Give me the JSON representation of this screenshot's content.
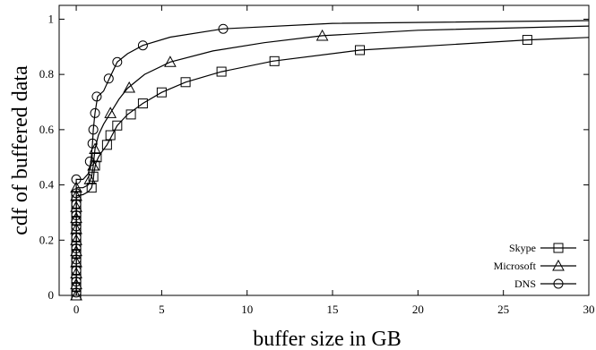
{
  "chart_data": {
    "type": "line",
    "xlabel": "buffer size in GB",
    "ylabel": "cdf of buffered data",
    "xlim": [
      -1,
      30
    ],
    "ylim": [
      0,
      1.05
    ],
    "x_ticks": [
      0,
      5,
      10,
      15,
      20,
      25,
      30
    ],
    "y_ticks": [
      0,
      0.2,
      0.4,
      0.6,
      0.8,
      1
    ],
    "x_tick_labels": [
      "0",
      "5",
      "10",
      "15",
      "20",
      "25",
      "30"
    ],
    "y_tick_labels": [
      "0",
      "0.2",
      "0.4",
      "0.6",
      "0.8",
      "1"
    ],
    "grid": false,
    "legend_position": "bottom-right",
    "series": [
      {
        "name": "Skype",
        "marker": "square",
        "curve": [
          [
            0,
            0
          ],
          [
            0,
            0.36
          ],
          [
            0.4,
            0.365
          ],
          [
            0.7,
            0.375
          ],
          [
            0.9,
            0.39
          ],
          [
            1.0,
            0.42
          ],
          [
            1.05,
            0.45
          ],
          [
            1.15,
            0.48
          ],
          [
            1.3,
            0.5
          ],
          [
            1.5,
            0.52
          ],
          [
            1.8,
            0.545
          ],
          [
            2.1,
            0.58
          ],
          [
            2.4,
            0.615
          ],
          [
            3.0,
            0.655
          ],
          [
            3.9,
            0.695
          ],
          [
            5.0,
            0.735
          ],
          [
            6.4,
            0.772
          ],
          [
            8.5,
            0.81
          ],
          [
            11.5,
            0.848
          ],
          [
            16.6,
            0.888
          ],
          [
            26.4,
            0.925
          ],
          [
            30,
            0.934
          ]
        ],
        "markers": [
          [
            0,
            0
          ],
          [
            0,
            0.03
          ],
          [
            0,
            0.06
          ],
          [
            0,
            0.09
          ],
          [
            0,
            0.12
          ],
          [
            0,
            0.15
          ],
          [
            0,
            0.18
          ],
          [
            0,
            0.21
          ],
          [
            0,
            0.24
          ],
          [
            0,
            0.27
          ],
          [
            0,
            0.3
          ],
          [
            0,
            0.33
          ],
          [
            0,
            0.36
          ],
          [
            0.9,
            0.39
          ],
          [
            1.0,
            0.43
          ],
          [
            1.1,
            0.47
          ],
          [
            1.2,
            0.5
          ],
          [
            1.8,
            0.545
          ],
          [
            2.0,
            0.58
          ],
          [
            2.4,
            0.615
          ],
          [
            3.2,
            0.655
          ],
          [
            3.9,
            0.695
          ],
          [
            5.0,
            0.735
          ],
          [
            6.4,
            0.772
          ],
          [
            8.5,
            0.81
          ],
          [
            11.6,
            0.848
          ],
          [
            16.6,
            0.888
          ],
          [
            26.4,
            0.925
          ]
        ]
      },
      {
        "name": "Microsoft",
        "marker": "triangle",
        "curve": [
          [
            0,
            0
          ],
          [
            0,
            0.39
          ],
          [
            0.4,
            0.39
          ],
          [
            0.7,
            0.4
          ],
          [
            0.9,
            0.43
          ],
          [
            1.0,
            0.47
          ],
          [
            1.1,
            0.53
          ],
          [
            1.3,
            0.58
          ],
          [
            1.6,
            0.62
          ],
          [
            2.0,
            0.66
          ],
          [
            2.5,
            0.71
          ],
          [
            3.0,
            0.75
          ],
          [
            4.0,
            0.8
          ],
          [
            5.5,
            0.845
          ],
          [
            8.0,
            0.885
          ],
          [
            11.0,
            0.915
          ],
          [
            14.4,
            0.94
          ],
          [
            20,
            0.96
          ],
          [
            30,
            0.975
          ]
        ],
        "markers": [
          [
            0,
            0
          ],
          [
            0,
            0.04
          ],
          [
            0,
            0.08
          ],
          [
            0,
            0.12
          ],
          [
            0,
            0.16
          ],
          [
            0,
            0.2
          ],
          [
            0,
            0.24
          ],
          [
            0,
            0.28
          ],
          [
            0,
            0.32
          ],
          [
            0,
            0.36
          ],
          [
            0,
            0.39
          ],
          [
            0.8,
            0.42
          ],
          [
            1.0,
            0.47
          ],
          [
            1.1,
            0.53
          ],
          [
            2.0,
            0.66
          ],
          [
            3.1,
            0.752
          ],
          [
            5.5,
            0.845
          ],
          [
            14.4,
            0.94
          ]
        ]
      },
      {
        "name": "DNS",
        "marker": "circle",
        "curve": [
          [
            0,
            0
          ],
          [
            0,
            0.42
          ],
          [
            0.4,
            0.42
          ],
          [
            0.7,
            0.44
          ],
          [
            0.85,
            0.48
          ],
          [
            0.95,
            0.55
          ],
          [
            1.0,
            0.6
          ],
          [
            1.1,
            0.66
          ],
          [
            1.25,
            0.72
          ],
          [
            1.6,
            0.74
          ],
          [
            1.9,
            0.78
          ],
          [
            2.4,
            0.845
          ],
          [
            3.0,
            0.875
          ],
          [
            3.9,
            0.905
          ],
          [
            5.5,
            0.935
          ],
          [
            8.6,
            0.965
          ],
          [
            15,
            0.985
          ],
          [
            30,
            0.995
          ]
        ],
        "markers": [
          [
            0,
            0.01
          ],
          [
            0,
            0.05
          ],
          [
            0,
            0.09
          ],
          [
            0,
            0.13
          ],
          [
            0,
            0.17
          ],
          [
            0,
            0.21
          ],
          [
            0,
            0.25
          ],
          [
            0,
            0.29
          ],
          [
            0,
            0.33
          ],
          [
            0,
            0.37
          ],
          [
            0,
            0.42
          ],
          [
            0.8,
            0.485
          ],
          [
            0.95,
            0.55
          ],
          [
            1.0,
            0.6
          ],
          [
            1.1,
            0.66
          ],
          [
            1.2,
            0.72
          ],
          [
            1.9,
            0.785
          ],
          [
            2.4,
            0.845
          ],
          [
            3.9,
            0.905
          ],
          [
            8.6,
            0.965
          ]
        ]
      }
    ]
  }
}
